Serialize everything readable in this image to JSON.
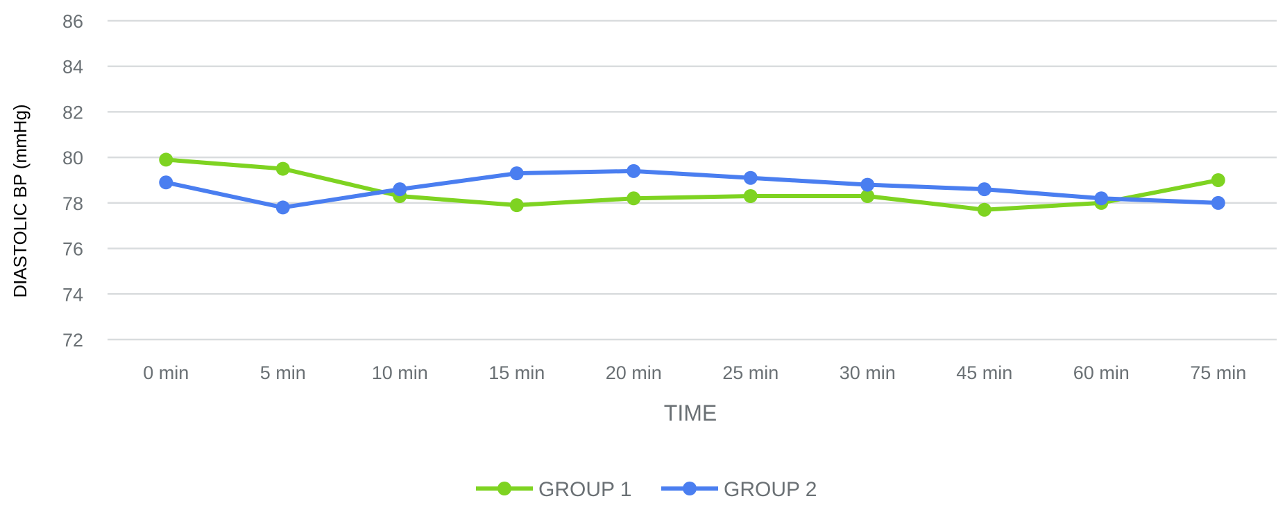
{
  "chart_data": {
    "type": "line",
    "categories": [
      "0 min",
      "5 min",
      "10 min",
      "15 min",
      "20 min",
      "25 min",
      "30 min",
      "45 min",
      "60 min",
      "75 min"
    ],
    "series": [
      {
        "name": "GROUP 1",
        "color": "#7ed321",
        "values": [
          79.9,
          79.5,
          78.3,
          77.9,
          78.2,
          78.3,
          78.3,
          77.7,
          78.0,
          79.0
        ]
      },
      {
        "name": "GROUP 2",
        "color": "#4a7ef0",
        "values": [
          78.9,
          77.8,
          78.6,
          79.3,
          79.4,
          79.1,
          78.8,
          78.6,
          78.2,
          78.0
        ]
      }
    ],
    "xlabel": "TIME",
    "ylabel": "DIASTOLIC BP (mmHg)",
    "ylim": [
      72,
      86
    ],
    "yticks": [
      72,
      74,
      76,
      78,
      80,
      82,
      84,
      86
    ],
    "grid": true,
    "legend": "bottom"
  }
}
